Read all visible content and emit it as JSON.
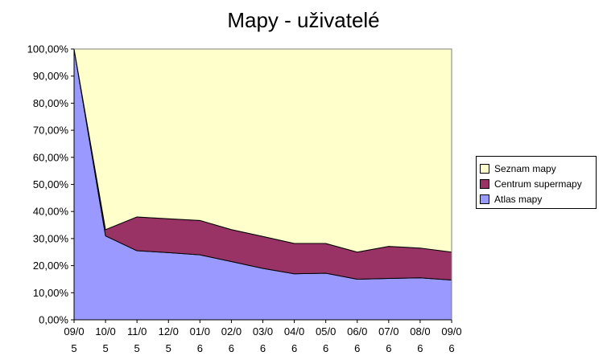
{
  "chart_data": {
    "type": "area",
    "stacked": true,
    "title": "Mapy - uživatelé",
    "categories": [
      [
        "09/0",
        "5"
      ],
      [
        "10/0",
        "5"
      ],
      [
        "11/0",
        "5"
      ],
      [
        "12/0",
        "5"
      ],
      [
        "01/0",
        "6"
      ],
      [
        "02/0",
        "6"
      ],
      [
        "03/0",
        "6"
      ],
      [
        "04/0",
        "6"
      ],
      [
        "05/0",
        "6"
      ],
      [
        "06/0",
        "6"
      ],
      [
        "07/0",
        "6"
      ],
      [
        "08/0",
        "6"
      ],
      [
        "09/0",
        "6"
      ]
    ],
    "y_ticks": [
      "0,00%",
      "10,00%",
      "20,00%",
      "30,00%",
      "40,00%",
      "50,00%",
      "60,00%",
      "70,00%",
      "80,00%",
      "90,00%",
      "100,00%"
    ],
    "ylim": [
      0,
      100
    ],
    "series": [
      {
        "name": "Atlas mapy",
        "color": "#9999ff",
        "values": [
          100,
          31,
          25.5,
          24.8,
          24,
          21.5,
          19,
          17,
          17.2,
          15,
          15.3,
          15.5,
          14.7
        ]
      },
      {
        "name": "Centrum supermapy",
        "color": "#993366",
        "values": [
          0,
          2.3,
          12.5,
          12.5,
          12.7,
          11.8,
          11.8,
          11.2,
          11,
          10,
          11.8,
          11,
          10.3
        ]
      },
      {
        "name": "Seznam mapy",
        "color": "#ffffcc",
        "values": [
          0,
          66.7,
          62,
          62.7,
          63.3,
          66.7,
          69.2,
          71.8,
          71.8,
          75,
          72.9,
          73.5,
          75
        ]
      }
    ],
    "legend_order": [
      "Seznam mapy",
      "Centrum supermapy",
      "Atlas mapy"
    ],
    "grid": false,
    "legend_position": "right"
  }
}
